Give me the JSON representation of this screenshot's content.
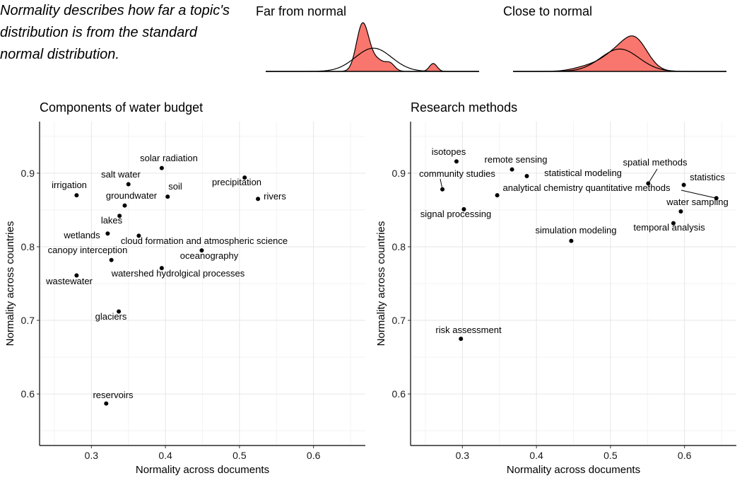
{
  "note_lines": [
    "Normality describes how far a topic's",
    "distribution is from the standard",
    "normal distribution."
  ],
  "colors": {
    "fill": "#F8766D",
    "point": "#000000",
    "grid_major": "#e6e6e6",
    "grid_minor": "#f3f3f3",
    "axis": "#000000"
  },
  "insets": [
    {
      "title": "Far from normal",
      "shape": "far"
    },
    {
      "title": "Close to normal",
      "shape": "close"
    }
  ],
  "chart_data": [
    {
      "type": "scatter",
      "title": "Components of water budget",
      "xlabel": "Normality across documents",
      "ylabel": "Normality across countries",
      "xlim": [
        0.23,
        0.67
      ],
      "ylim": [
        0.53,
        0.97
      ],
      "xticks": [
        0.3,
        0.4,
        0.5,
        0.6
      ],
      "yticks": [
        0.6,
        0.7,
        0.8,
        0.9
      ],
      "grid": true,
      "points": [
        {
          "label": "solar radiation",
          "x": 0.395,
          "y": 0.907
        },
        {
          "label": "precipitation",
          "x": 0.507,
          "y": 0.894
        },
        {
          "label": "salt water",
          "x": 0.35,
          "y": 0.885
        },
        {
          "label": "irrigation",
          "x": 0.28,
          "y": 0.87
        },
        {
          "label": "soil",
          "x": 0.403,
          "y": 0.868
        },
        {
          "label": "rivers",
          "x": 0.525,
          "y": 0.865
        },
        {
          "label": "groundwater",
          "x": 0.345,
          "y": 0.856
        },
        {
          "label": "lakes",
          "x": 0.338,
          "y": 0.842
        },
        {
          "label": "wetlands",
          "x": 0.322,
          "y": 0.818
        },
        {
          "label": "cloud formation and atmospheric science",
          "x": 0.364,
          "y": 0.815
        },
        {
          "label": "oceanography",
          "x": 0.449,
          "y": 0.795
        },
        {
          "label": "canopy interception",
          "x": 0.327,
          "y": 0.782
        },
        {
          "label": "watershed hydrolgical processes",
          "x": 0.395,
          "y": 0.771
        },
        {
          "label": "wastewater",
          "x": 0.28,
          "y": 0.761
        },
        {
          "label": "glaciers",
          "x": 0.337,
          "y": 0.712
        },
        {
          "label": "reservoirs",
          "x": 0.32,
          "y": 0.587
        }
      ]
    },
    {
      "type": "scatter",
      "title": "Research methods",
      "xlabel": "Normality across documents",
      "ylabel": "Normality across countries",
      "xlim": [
        0.23,
        0.67
      ],
      "ylim": [
        0.53,
        0.97
      ],
      "xticks": [
        0.3,
        0.4,
        0.5,
        0.6
      ],
      "yticks": [
        0.6,
        0.7,
        0.8,
        0.9
      ],
      "grid": true,
      "points": [
        {
          "label": "isotopes",
          "x": 0.292,
          "y": 0.916
        },
        {
          "label": "remote sensing",
          "x": 0.367,
          "y": 0.905
        },
        {
          "label": "statistical modeling",
          "x": 0.387,
          "y": 0.896
        },
        {
          "label": "spatial methods",
          "x": 0.551,
          "y": 0.886
        },
        {
          "label": "statistics",
          "x": 0.599,
          "y": 0.884
        },
        {
          "label": "community studies",
          "x": 0.273,
          "y": 0.878
        },
        {
          "label": "analytical chemistry quantitative methods",
          "x": 0.347,
          "y": 0.87
        },
        {
          "label": "analytical chemistry quantitative methods",
          "x": 0.643,
          "y": 0.866
        },
        {
          "label": "signal processing",
          "x": 0.302,
          "y": 0.851
        },
        {
          "label": "water sampling",
          "x": 0.595,
          "y": 0.848
        },
        {
          "label": "temporal analysis",
          "x": 0.585,
          "y": 0.832
        },
        {
          "label": "simulation modeling",
          "x": 0.447,
          "y": 0.808
        },
        {
          "label": "risk assessment",
          "x": 0.298,
          "y": 0.675
        }
      ]
    }
  ]
}
